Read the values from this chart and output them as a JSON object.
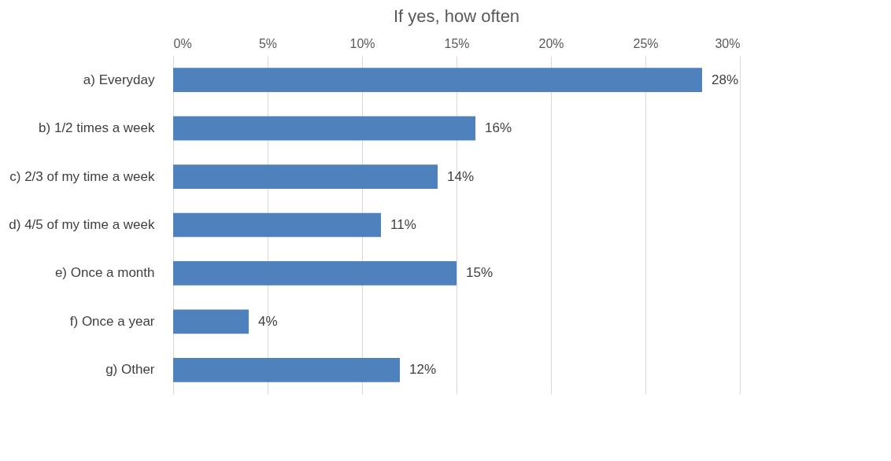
{
  "chart_data": {
    "type": "bar",
    "orientation": "horizontal",
    "title": "If yes, how often",
    "categories": [
      "a) Everyday",
      "b) 1/2 times a week",
      "c) 2/3 of my time a week",
      "d) 4/5 of my time a week",
      "e) Once a month",
      "f) Once a year",
      "g) Other"
    ],
    "values": [
      28,
      16,
      14,
      11,
      15,
      4,
      12
    ],
    "value_labels": [
      "28%",
      "16%",
      "14%",
      "11%",
      "15%",
      "4%",
      "12%"
    ],
    "color": "#4f81bd",
    "xlim": [
      0,
      30
    ],
    "xticks": [
      {
        "value": 0,
        "label": "0%"
      },
      {
        "value": 5,
        "label": "5%"
      },
      {
        "value": 10,
        "label": "10%"
      },
      {
        "value": 15,
        "label": "15%"
      },
      {
        "value": 20,
        "label": "20%"
      },
      {
        "value": 25,
        "label": "25%"
      },
      {
        "value": 30,
        "label": "30%"
      }
    ],
    "grid": "x"
  }
}
